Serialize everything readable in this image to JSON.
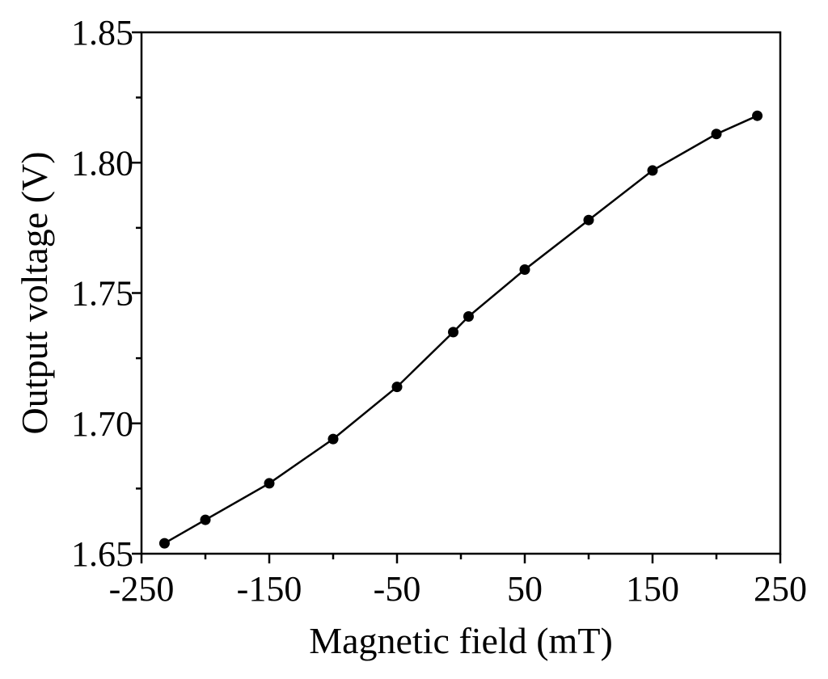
{
  "chart_data": {
    "type": "line",
    "title": "",
    "xlabel": "Magnetic field (mT)",
    "ylabel": "Output voltage (V)",
    "xlim": [
      -250,
      250
    ],
    "ylim": [
      1.65,
      1.85
    ],
    "xticks": [
      -250,
      -200,
      -150,
      -100,
      -50,
      0,
      50,
      100,
      150,
      200,
      250
    ],
    "xtick_labels": [
      "-250",
      "",
      "-150",
      "",
      "-50",
      "",
      "50",
      "",
      "150",
      "",
      "250"
    ],
    "yticks": [
      1.65,
      1.675,
      1.7,
      1.725,
      1.75,
      1.775,
      1.8,
      1.825,
      1.85
    ],
    "ytick_labels": [
      "1.65",
      "",
      "1.70",
      "",
      "1.75",
      "",
      "1.80",
      "",
      "1.85"
    ],
    "grid": false,
    "series": [
      {
        "color": "#000000",
        "marker": "circle",
        "x": [
          -232,
          -200,
          -150,
          -100,
          -50,
          -6,
          6,
          50,
          100,
          150,
          200,
          232
        ],
        "y": [
          1.654,
          1.663,
          1.677,
          1.694,
          1.714,
          1.735,
          1.741,
          1.759,
          1.778,
          1.797,
          1.811,
          1.818
        ]
      }
    ]
  }
}
